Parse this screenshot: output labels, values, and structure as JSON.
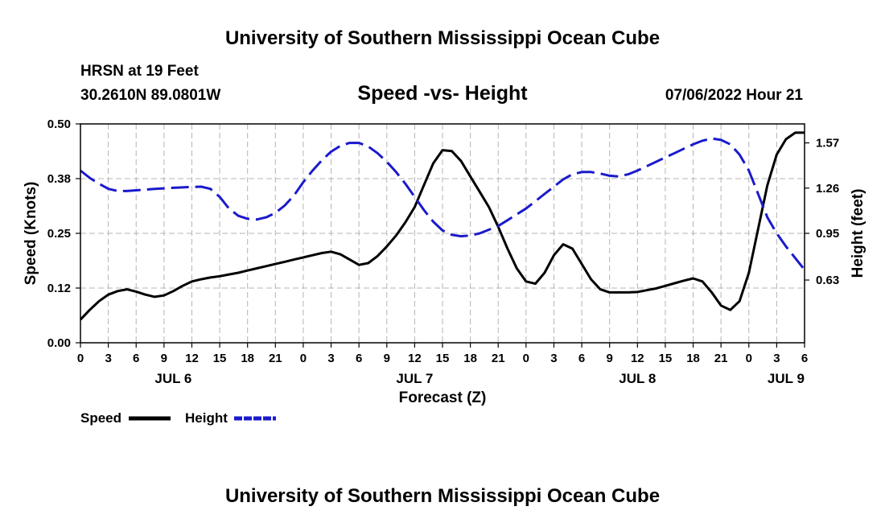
{
  "chart_data": {
    "type": "line",
    "title": "University of Southern Mississippi Ocean Cube",
    "footer_title": "University of Southern Mississippi Ocean Cube",
    "subtitle": "Speed -vs- Height",
    "station": "HRSN at 19 Feet",
    "location": "30.2610N  89.0801W",
    "issued": "07/06/2022 Hour 21",
    "xlabel": "Forecast (Z)",
    "ylabel_left": "Speed (Knots)",
    "ylabel_right": "Height (feet)",
    "x_range": [
      0,
      78
    ],
    "ylim_left": [
      0,
      0.5
    ],
    "ylim_right": [
      0.2,
      1.7
    ],
    "x_ticks": [
      {
        "x": 0,
        "label": "0"
      },
      {
        "x": 3,
        "label": "3"
      },
      {
        "x": 6,
        "label": "6"
      },
      {
        "x": 9,
        "label": "9"
      },
      {
        "x": 12,
        "label": "12"
      },
      {
        "x": 15,
        "label": "15"
      },
      {
        "x": 18,
        "label": "18"
      },
      {
        "x": 21,
        "label": "21"
      },
      {
        "x": 24,
        "label": "0"
      },
      {
        "x": 27,
        "label": "3"
      },
      {
        "x": 30,
        "label": "6"
      },
      {
        "x": 33,
        "label": "9"
      },
      {
        "x": 36,
        "label": "12"
      },
      {
        "x": 39,
        "label": "15"
      },
      {
        "x": 42,
        "label": "18"
      },
      {
        "x": 45,
        "label": "21"
      },
      {
        "x": 48,
        "label": "0"
      },
      {
        "x": 51,
        "label": "3"
      },
      {
        "x": 54,
        "label": "6"
      },
      {
        "x": 57,
        "label": "9"
      },
      {
        "x": 60,
        "label": "12"
      },
      {
        "x": 63,
        "label": "15"
      },
      {
        "x": 66,
        "label": "18"
      },
      {
        "x": 69,
        "label": "21"
      },
      {
        "x": 72,
        "label": "0"
      },
      {
        "x": 75,
        "label": "3"
      },
      {
        "x": 78,
        "label": "6"
      }
    ],
    "day_labels": [
      {
        "x": 10,
        "label": "JUL 6"
      },
      {
        "x": 36,
        "label": "JUL 7"
      },
      {
        "x": 60,
        "label": "JUL 8"
      },
      {
        "x": 76,
        "label": "JUL 9"
      }
    ],
    "y_ticks_left": [
      {
        "v": 0.0,
        "label": "0.00"
      },
      {
        "v": 0.125,
        "label": "0.12"
      },
      {
        "v": 0.25,
        "label": "0.25"
      },
      {
        "v": 0.375,
        "label": "0.38"
      },
      {
        "v": 0.5,
        "label": "0.50"
      }
    ],
    "y_ticks_right": [
      {
        "v": 0.63,
        "label": "0.63"
      },
      {
        "v": 0.95,
        "label": "0.95"
      },
      {
        "v": 1.26,
        "label": "1.26"
      },
      {
        "v": 1.57,
        "label": "1.57"
      }
    ],
    "legend": [
      {
        "name": "Speed",
        "color": "#000000",
        "dash": "solid"
      },
      {
        "name": "Height",
        "color": "#1a1acc",
        "dash": "dashed"
      }
    ],
    "series": [
      {
        "name": "Speed",
        "axis": "left",
        "color": "#000000",
        "dash": "solid",
        "x": [
          0,
          1,
          2,
          3,
          4,
          5,
          6,
          7,
          8,
          9,
          10,
          11,
          12,
          13,
          14,
          15,
          16,
          17,
          18,
          19,
          20,
          21,
          22,
          23,
          24,
          25,
          26,
          27,
          28,
          29,
          30,
          31,
          32,
          33,
          34,
          35,
          36,
          37,
          38,
          39,
          40,
          41,
          42,
          43,
          44,
          45,
          46,
          47,
          48,
          49,
          50,
          51,
          52,
          53,
          54,
          55,
          56,
          57,
          58,
          59,
          60,
          61,
          62,
          63,
          64,
          65,
          66,
          67,
          68,
          69,
          70,
          71,
          72,
          73,
          74,
          75,
          76,
          77,
          78
        ],
        "values": [
          0.053,
          0.075,
          0.095,
          0.11,
          0.118,
          0.122,
          0.117,
          0.11,
          0.105,
          0.108,
          0.118,
          0.13,
          0.14,
          0.145,
          0.149,
          0.152,
          0.156,
          0.16,
          0.165,
          0.17,
          0.175,
          0.18,
          0.185,
          0.19,
          0.195,
          0.2,
          0.205,
          0.208,
          0.202,
          0.19,
          0.178,
          0.182,
          0.198,
          0.22,
          0.245,
          0.275,
          0.31,
          0.36,
          0.41,
          0.44,
          0.438,
          0.415,
          0.38,
          0.345,
          0.31,
          0.265,
          0.215,
          0.17,
          0.14,
          0.135,
          0.16,
          0.2,
          0.225,
          0.215,
          0.18,
          0.145,
          0.122,
          0.115,
          0.115,
          0.115,
          0.116,
          0.12,
          0.124,
          0.13,
          0.136,
          0.142,
          0.147,
          0.14,
          0.115,
          0.085,
          0.075,
          0.095,
          0.16,
          0.26,
          0.36,
          0.43,
          0.465,
          0.48,
          0.48
        ]
      },
      {
        "name": "Height",
        "axis": "right",
        "color": "#1a1acc",
        "dash": "dashed",
        "x": [
          0,
          1,
          2,
          3,
          4,
          5,
          6,
          7,
          8,
          9,
          10,
          11,
          12,
          13,
          14,
          15,
          16,
          17,
          18,
          19,
          20,
          21,
          22,
          23,
          24,
          25,
          26,
          27,
          28,
          29,
          30,
          31,
          32,
          33,
          34,
          35,
          36,
          37,
          38,
          39,
          40,
          41,
          42,
          43,
          44,
          45,
          46,
          47,
          48,
          49,
          50,
          51,
          52,
          53,
          54,
          55,
          56,
          57,
          58,
          59,
          60,
          61,
          62,
          63,
          64,
          65,
          66,
          67,
          68,
          69,
          70,
          71,
          72,
          73,
          74,
          75,
          76,
          77,
          78
        ],
        "values": [
          1.38,
          1.33,
          1.29,
          1.255,
          1.24,
          1.24,
          1.245,
          1.25,
          1.255,
          1.258,
          1.262,
          1.265,
          1.268,
          1.27,
          1.255,
          1.2,
          1.12,
          1.07,
          1.05,
          1.045,
          1.06,
          1.09,
          1.14,
          1.21,
          1.3,
          1.38,
          1.45,
          1.51,
          1.55,
          1.57,
          1.57,
          1.545,
          1.5,
          1.44,
          1.37,
          1.29,
          1.2,
          1.11,
          1.03,
          0.97,
          0.94,
          0.93,
          0.935,
          0.95,
          0.975,
          1.0,
          1.04,
          1.08,
          1.12,
          1.17,
          1.22,
          1.27,
          1.32,
          1.355,
          1.37,
          1.37,
          1.36,
          1.345,
          1.34,
          1.355,
          1.38,
          1.41,
          1.44,
          1.47,
          1.5,
          1.53,
          1.56,
          1.585,
          1.6,
          1.59,
          1.56,
          1.49,
          1.38,
          1.22,
          1.06,
          0.95,
          0.86,
          0.78,
          0.7
        ]
      }
    ]
  }
}
